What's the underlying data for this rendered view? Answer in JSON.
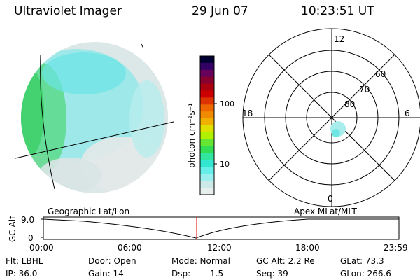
{
  "header": {
    "title": "Ultraviolet Imager",
    "date": "29 Jun 07",
    "time": "10:23:51 UT"
  },
  "colorbar": {
    "unit_label": "photon cm⁻²s⁻¹",
    "ticks": [
      "100",
      "10"
    ],
    "colors": [
      "#000033",
      "#330066",
      "#66005a",
      "#880030",
      "#aa0010",
      "#cc0000",
      "#dd3300",
      "#ee6600",
      "#f08a00",
      "#f0b000",
      "#e0e000",
      "#b0f000",
      "#66e633",
      "#33dd55",
      "#33e6a0",
      "#33e6d0",
      "#66eee8",
      "#99f0ee",
      "#cde9e9",
      "#e6eeee"
    ]
  },
  "polar_plot": {
    "mlt_labels": {
      "top": "12",
      "left": "18",
      "right": "6",
      "bottom": "0"
    },
    "lat_labels": [
      "60",
      "70",
      "80"
    ]
  },
  "timeline": {
    "ylabel": "GC Alt",
    "ytick": "9.0",
    "yzero": "0",
    "left_title": "Geographic Lat/Lon",
    "right_title": "Apex MLat/MLT",
    "time_ticks": [
      "00:00",
      "06:00",
      "12:00",
      "18:00",
      "23:59"
    ]
  },
  "status": {
    "filter": "Flt: LBHL",
    "ip": "IP: 36.0",
    "door": "Door: Open",
    "gain": "Gain: 14",
    "mode": "Mode: Normal",
    "dsp_label": "Dsp:",
    "dsp_value": "1.5",
    "gc_alt": "GC Alt: 2.2 Re",
    "seq": "Seq: 39",
    "glat": "GLat:  73.3",
    "glon": "GLon: 266.6"
  }
}
